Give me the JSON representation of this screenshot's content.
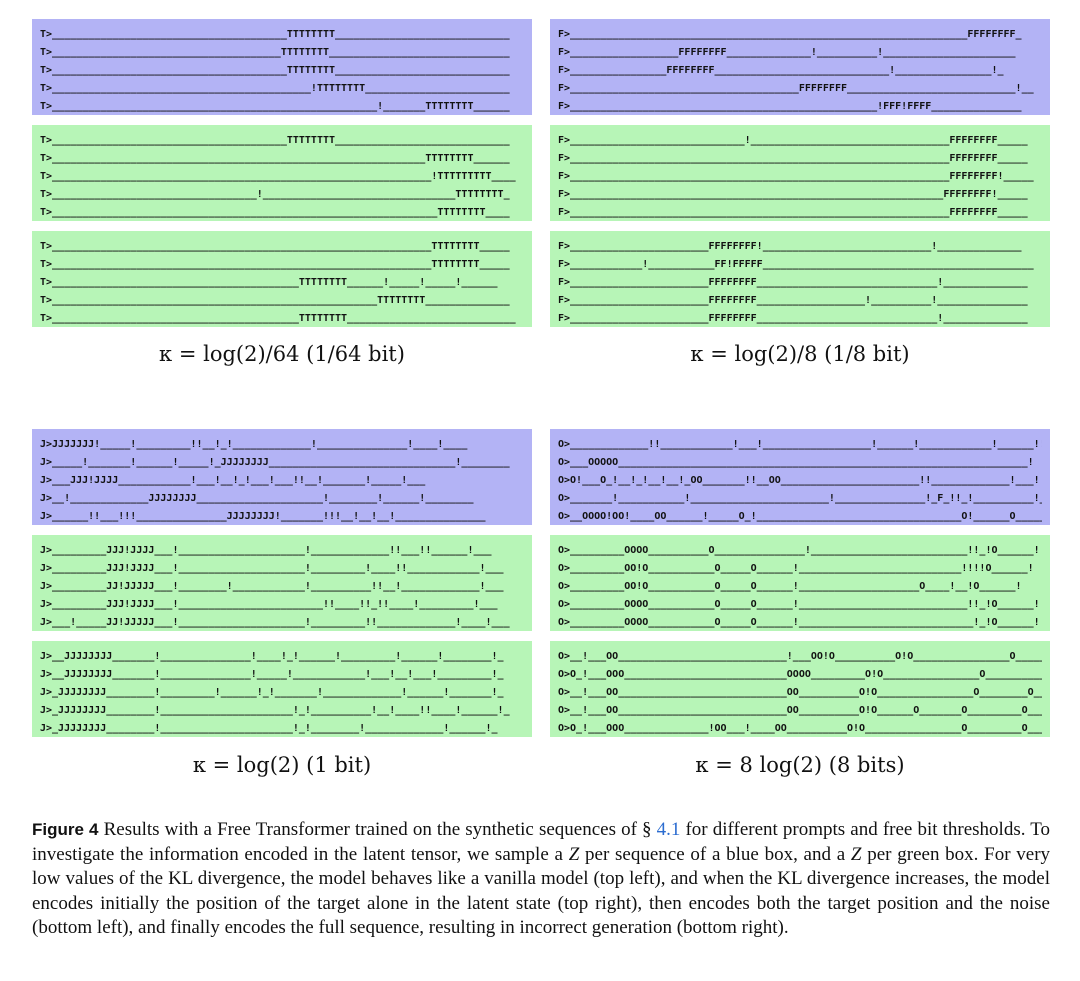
{
  "panels": {
    "tl": [
      [
        "T>_______________________________________TTTTTTTT_____________________________",
        "T>______________________________________TTTTTTTT______________________________",
        "T>_______________________________________TTTTTTTT_____________________________",
        "T>___________________________________________!TTTTTTTT________________________",
        "T>______________________________________________________!_______TTTTTTTT______"
      ],
      [
        "T>_______________________________________TTTTTTTT_____________________________",
        "T>______________________________________________________________TTTTTTTT______",
        "T>_______________________________________________________________!TTTTTTTTT____",
        "T>__________________________________!________________________________TTTTTTTT_",
        "T>________________________________________________________________TTTTTTTT____"
      ],
      [
        "T>_______________________________________________________________TTTTTTTT_____",
        "T>_______________________________________________________________TTTTTTTT_____",
        "T>_________________________________________TTTTTTTT______!_____!_____!______",
        "T>______________________________________________________TTTTTTTT______________",
        "T>_________________________________________TTTTTTTT____________________________"
      ]
    ],
    "tr": [
      [
        "F>__________________________________________________________________FFFFFFFF_",
        "F>__________________FFFFFFFF______________!__________!______________________",
        "F>________________FFFFFFFF_____________________________!________________!_",
        "F>______________________________________FFFFFFFF____________________________!__",
        "F>___________________________________________________!FFF!FFFF_______________"
      ],
      [
        "F>_____________________________!_________________________________FFFFFFFF_____",
        "F>_______________________________________________________________FFFFFFFF_____",
        "F>_______________________________________________________________FFFFFFFF!_____",
        "F>______________________________________________________________FFFFFFFF!_____",
        "F>_______________________________________________________________FFFFFFFF_____"
      ],
      [
        "F>_______________________FFFFFFFF!____________________________!______________",
        "F>____________!___________FF!FFFFF_____________________________________________",
        "F>_______________________FFFFFFFF______________________________!______________",
        "F>_______________________FFFFFFFF__________________!__________!_______________",
        "F>_______________________FFFFFFFF______________________________!______________"
      ]
    ],
    "bl": [
      [
        "J>JJJJJJJ!_____!_________!!__!_!_____________!_______________!____!____",
        "J>_____!_______!______!_____!_JJJJJJJJ_______________________________!________",
        "J>___JJJ!JJJJ____________!___!__!_!___!___!!__!_______!_____!___",
        "J>__!_____________JJJJJJJJ_____________________!________!______!________",
        "J>______!!___!!!_______________JJJJJJJJ!_______!!!__!__!__!_______________"
      ],
      [
        "J>_________JJJ!JJJJ___!_____________________!_____________!!___!!______!___",
        "J>_________JJJ!JJJJ___!_____________________!_________!____!!____________!___",
        "J>_________JJ!JJJJJ___!________!____________!__________!!__!_____________!___",
        "J>_________JJJ!JJJJ___!________________________!!____!!_!!____!_________!___",
        "J>___!_____JJ!JJJJJ___!_____________________!_________!!_____________!____!___"
      ],
      [
        "J>__JJJJJJJJ_______!_______________!____!_!______!_________!______!________!_",
        "J>__JJJJJJJJ_______!_______________!_____!____________!___!__!___!_________!_",
        "J>_JJJJJJJJ________!_________!______!_!_______!_____________!______!_______!_",
        "J>_JJJJJJJJ________!______________________!_!__________!__!____!!____!______!_",
        "J>_JJJJJJJJ________!______________________!_!________!_____________!______!_"
      ]
    ],
    "br": [
      [
        "O>_____________!!____________!___!__________________!______!____________!______!!",
        "O>___OOOOO____________________________________________________________________!",
        "O>O!___O_!__!_!__!__!_OO_______!!__OO_______________________!!_____________!___!",
        "O>_______!___________!_______________________!_______________!_F_!!_!__________!__",
        "O>__OOOO!OO!____OO______!_____O_!__________________________________O!______O_______!"
      ],
      [
        "O>_________OOOO__________O_______________!__________________________!!_!O______!",
        "O>_________OO!O___________O_____O______!___________________________!!!!O______!",
        "O>_________OO!O___________O_____O______!____________________O____!__!O______!",
        "O>_________OOOO___________O_____O______!____________________________!!_!O______!",
        "O>_________OOOO___________O_____O______!_____________________________!_!O______!"
      ],
      [
        "O>__!___OO____________________________!___OO!O__________O!O________________O________O___!",
        "O>O_!___OOO___________________________OOOO_________O!O________________O__________!!",
        "O>__!___OO____________________________OO__________O!O________________O________O______",
        "O>__!___OO____________________________OO__________O!O______O_______O_________O___!!",
        "O>O_!___OOO______________!OO___!____OO__________O!O________________O_________O___!"
      ]
    ]
  },
  "labels": {
    "tl": "κ = log(2)/64 (1/64 bit)",
    "tr": "κ = log(2)/8 (1/8 bit)",
    "bl": "κ = log(2) (1 bit)",
    "br": "κ = 8 log(2) (8 bits)"
  },
  "figure_caption": {
    "label": "Figure 4",
    "part1": "Results with a Free Transformer trained on the synthetic sequences of §",
    "ref": "4.1",
    "part2": "for different prompts and free bit thresholds. To investigate the information encoded in the latent tensor, we sample a",
    "z1": "Z",
    "part3": "per sequence of a blue box, and a",
    "z2": "Z",
    "part4": "per green box. For very low values of the KL divergence, the model behaves like a vanilla model (top left), and when the KL divergence increases, the model encodes initially the position of the target alone in the latent state (top right), then encodes both the target position and the noise (bottom left), and finally encodes the full sequence, resulting in incorrect generation (bottom right)."
  },
  "colors": {
    "blue_box": "#b3b3f5",
    "green_box": "#b7f5b7",
    "link": "#2b6cd0"
  }
}
